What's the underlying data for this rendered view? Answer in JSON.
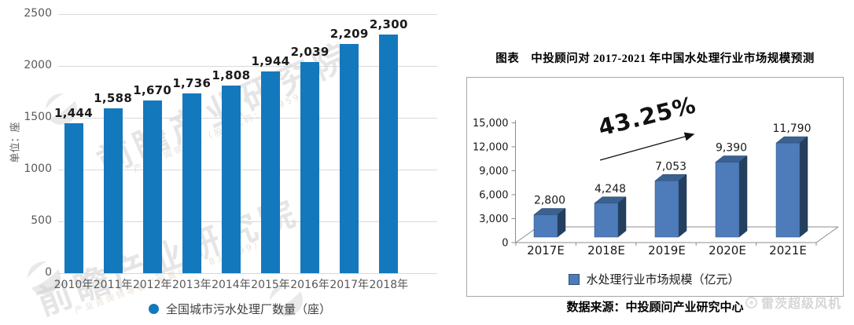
{
  "watermarks": {
    "brand_text": "前瞻产业研究院",
    "brand_subtext": "产业咨询领导者（股票代码：839599）",
    "corner_text": "雷茨超级风机"
  },
  "chart_data": [
    {
      "type": "bar",
      "title": "",
      "unit_label": "单位：座",
      "categories": [
        "2010年",
        "2011年",
        "2012年",
        "2013年",
        "2014年",
        "2015年",
        "2016年",
        "2017年",
        "2018年"
      ],
      "values": [
        1444,
        1588,
        1670,
        1736,
        1808,
        1944,
        2039,
        2209,
        2300
      ],
      "value_labels": [
        "1,444",
        "1,588",
        "1,670",
        "1,736",
        "1,808",
        "1,944",
        "2,039",
        "2,209",
        "2,300"
      ],
      "ylim": [
        0,
        2500
      ],
      "yticks": [
        0,
        500,
        1000,
        1500,
        2000,
        2500
      ],
      "ytick_labels": [
        "0",
        "500",
        "1000",
        "1500",
        "2000",
        "2500"
      ],
      "grid": true,
      "legend": "全国城市污水处理厂数量（座）",
      "legend_position": "bottom",
      "bar_color": "#1478bd"
    },
    {
      "type": "bar",
      "style": "3d",
      "title": "图表　中投顾问对 2017-2021 年中国水处理行业市场规模预测",
      "categories": [
        "2017E",
        "2018E",
        "2019E",
        "2020E",
        "2021E"
      ],
      "values": [
        2800,
        4248,
        7053,
        9390,
        11790
      ],
      "value_labels": [
        "2,800",
        "4,248",
        "7,053",
        "9,390",
        "11,790"
      ],
      "ylim": [
        0,
        15000
      ],
      "yticks": [
        0,
        3000,
        6000,
        9000,
        12000,
        15000
      ],
      "ytick_labels": [
        "0",
        "3,000",
        "6,000",
        "9,000",
        "12,000",
        "15,000"
      ],
      "grid": false,
      "annotation": "43.25%",
      "legend": "水处理行业市场规模（亿元）",
      "legend_position": "bottom",
      "source": "数据来源：中投顾问产业研究中心",
      "bar_color": "#4e7cba",
      "bar_side_color": "#24405e",
      "bar_top_color": "#3a6191",
      "axis_color": "#8c8c8c"
    }
  ]
}
